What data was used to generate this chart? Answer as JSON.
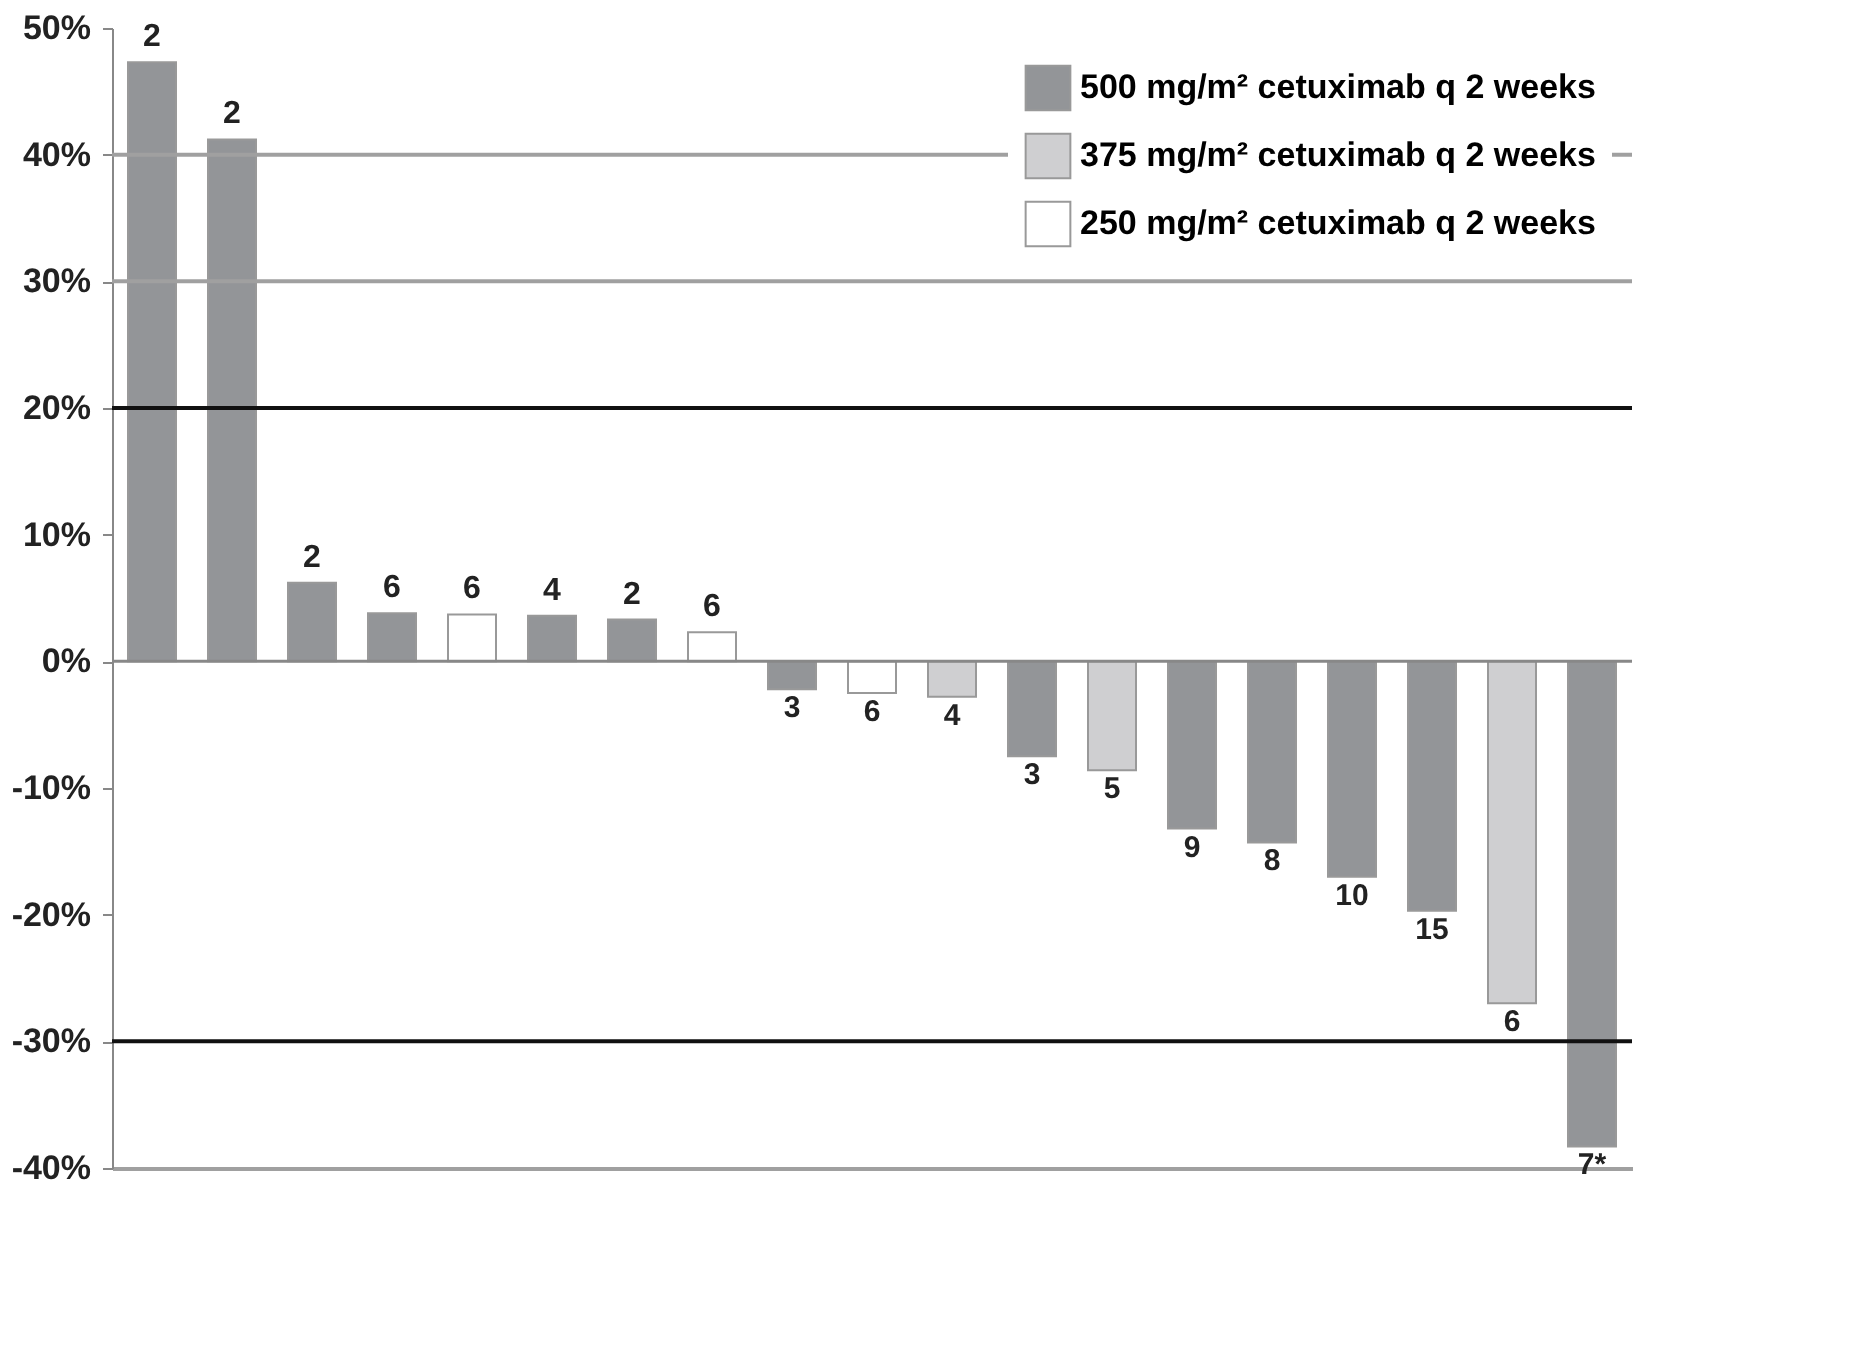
{
  "chart_data": {
    "type": "bar",
    "categories": [
      null,
      null,
      null,
      null,
      null,
      null,
      null,
      null,
      null,
      null,
      null,
      null,
      null,
      null,
      null,
      null,
      null,
      null,
      null
    ],
    "series": [
      {
        "name": "500 mg/m² cetuximab q 2 weeks",
        "color": "#939598",
        "values": [
          47.3,
          41.2,
          6.2,
          3.8,
          null,
          3.6,
          3.3,
          null,
          -2.2,
          null,
          null,
          -7.5,
          null,
          -13.2,
          -14.3,
          -17.0,
          -19.7,
          null,
          -38.3
        ]
      },
      {
        "name": "375 mg/m² cetuximab q 2 weeks",
        "color": "#cfcfd1",
        "values": [
          null,
          null,
          null,
          null,
          null,
          null,
          null,
          null,
          null,
          null,
          -2.8,
          null,
          -8.6,
          null,
          null,
          null,
          null,
          -27.0,
          null
        ]
      },
      {
        "name": "250 mg/m² cetuximab q 2 weeks",
        "color": "#ffffff",
        "values": [
          null,
          null,
          null,
          null,
          3.7,
          null,
          null,
          2.3,
          null,
          -2.5,
          null,
          null,
          null,
          null,
          null,
          null,
          null,
          null,
          null
        ]
      }
    ],
    "value_labels": [
      "2",
      "2",
      "2",
      "6",
      "6",
      "4",
      "2",
      "6",
      "3",
      "6",
      "4",
      "3",
      "5",
      "9",
      "8",
      "10",
      "15",
      "6",
      "7*"
    ],
    "ylim": [
      -40,
      50
    ],
    "yticks": [
      {
        "value": -40,
        "label": "-40%"
      },
      {
        "value": -30,
        "label": "-30%"
      },
      {
        "value": -20,
        "label": "-20%"
      },
      {
        "value": -10,
        "label": "-10%"
      },
      {
        "value": 0,
        "label": "0%"
      },
      {
        "value": 10,
        "label": "10%"
      },
      {
        "value": 20,
        "label": "20%"
      },
      {
        "value": 30,
        "label": "30%"
      },
      {
        "value": 40,
        "label": "40%"
      },
      {
        "value": 50,
        "label": "50%"
      }
    ],
    "ref_lines": [
      {
        "axis": "y",
        "value": 40,
        "color": "#a0a0a0"
      },
      {
        "axis": "y",
        "value": 30,
        "color": "#a0a0a0"
      },
      {
        "axis": "y",
        "value": 20,
        "color": "#111111"
      },
      {
        "axis": "y",
        "value": -30,
        "color": "#111111"
      }
    ],
    "legend": "top right",
    "tick_labels": "y"
  }
}
